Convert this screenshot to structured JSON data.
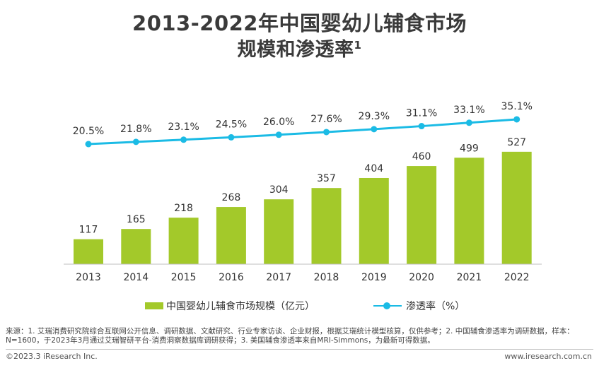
{
  "title": {
    "line1": "2013-2022年中国婴幼儿辅食市场",
    "line2": "规模和渗透率",
    "sup": "1"
  },
  "chart_data": {
    "type": "bar",
    "categories": [
      "2013",
      "2014",
      "2015",
      "2016",
      "2017",
      "2018",
      "2019",
      "2020",
      "2021",
      "2022"
    ],
    "series": [
      {
        "name": "中国婴幼儿辅食市场规模（亿元）",
        "type": "bar",
        "color": "#a3c92a",
        "values": [
          117,
          165,
          218,
          268,
          304,
          357,
          404,
          460,
          499,
          527
        ]
      },
      {
        "name": "渗透率（%）",
        "type": "line",
        "color": "#1bbbe5",
        "values": [
          20.5,
          21.8,
          23.1,
          24.5,
          26.0,
          27.6,
          29.3,
          31.1,
          33.1,
          35.1
        ],
        "labels": [
          "20.5%",
          "21.8%",
          "23.1%",
          "24.5%",
          "26.0%",
          "27.6%",
          "29.3%",
          "31.1%",
          "33.1%",
          "35.1%"
        ]
      }
    ],
    "legend_position": "bottom",
    "grid": false
  },
  "legend": {
    "bar_label": "中国婴幼儿辅食市场规模（亿元）",
    "line_label": "渗透率（%）"
  },
  "footnote": {
    "line1": "来源：1. 艾瑞消费研究院综合互联网公开信息、调研数据、文献研究、行业专家访谈、企业财报，根据艾瑞统计模型核算，仅供参考；2. 中国辅食渗透率为调研数据，样本：",
    "line2": "N=1600，于2023年3月通过艾瑞智研平台-消费洞察数据库调研获得；3. 美国辅食渗透率来自MRI-Simmons，为最新可得数据。"
  },
  "footer": {
    "copyright": "©2023.3 iResearch Inc.",
    "website": "www.iresearch.com.cn"
  }
}
